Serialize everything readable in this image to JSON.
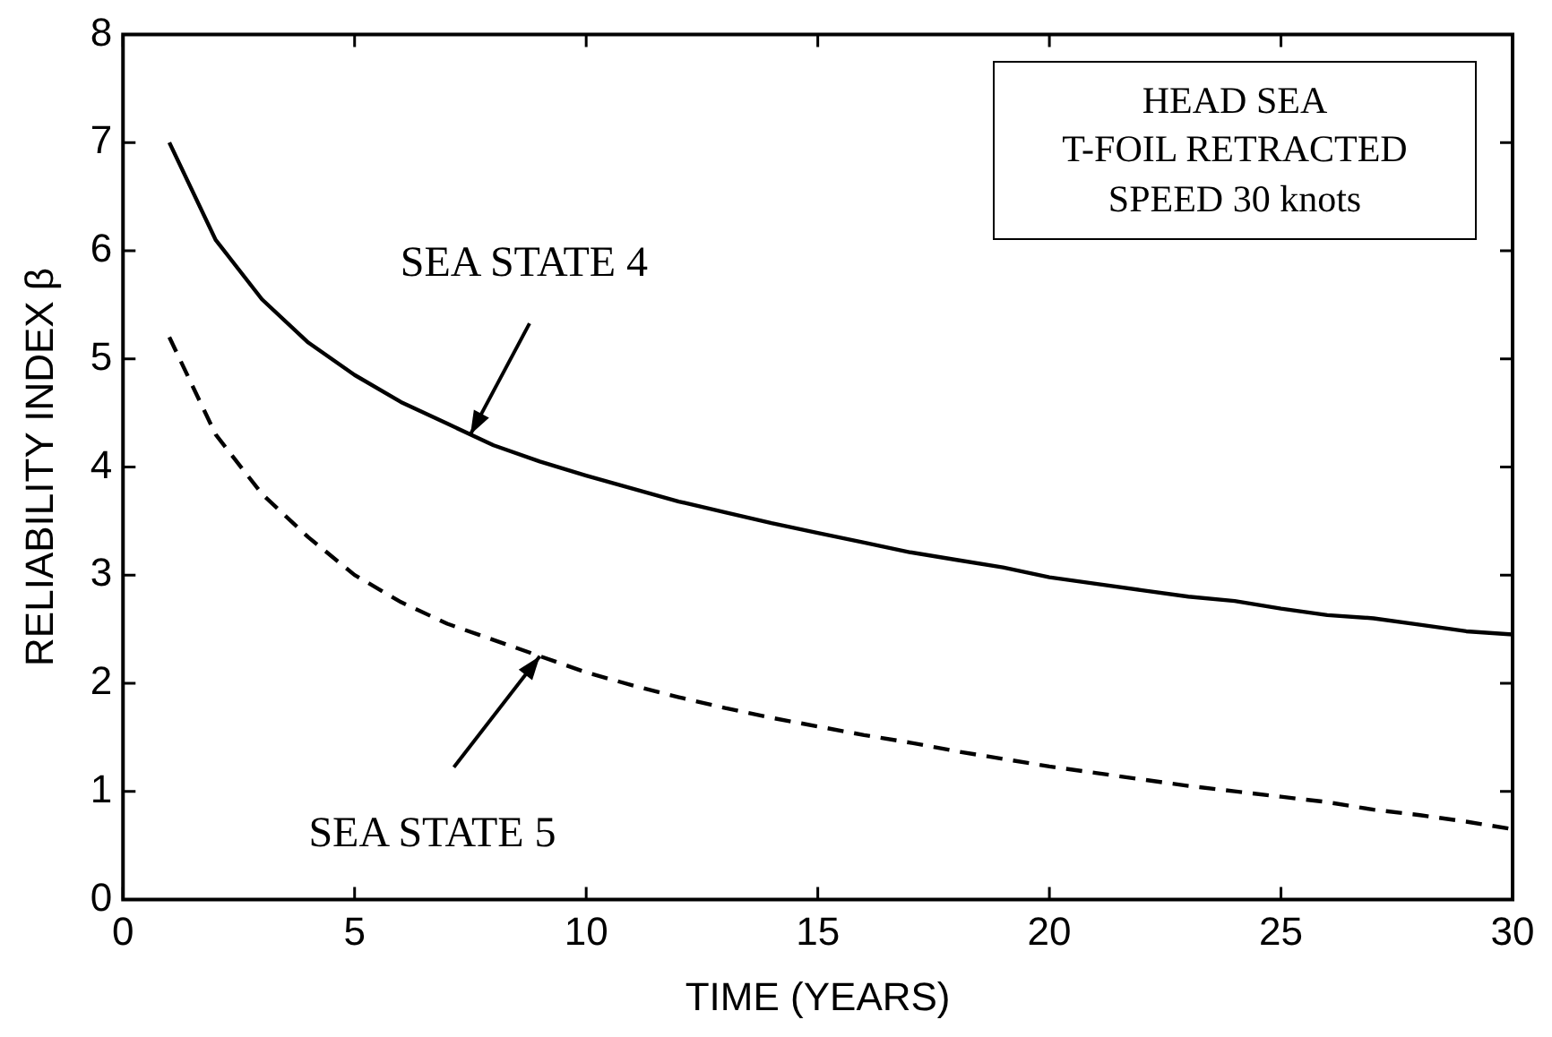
{
  "chart_data": {
    "type": "line",
    "xlabel": "TIME (YEARS)",
    "ylabel": "RELIABILITY INDEX β",
    "x": [
      1,
      2,
      3,
      4,
      5,
      6,
      7,
      8,
      9,
      10,
      11,
      12,
      13,
      14,
      15,
      16,
      17,
      18,
      19,
      20,
      21,
      22,
      23,
      24,
      25,
      26,
      27,
      28,
      29,
      30
    ],
    "series": [
      {
        "color": "#000000",
        "line_style": "solid",
        "values": [
          7.0,
          6.1,
          5.55,
          5.15,
          4.85,
          4.6,
          4.4,
          4.2,
          4.05,
          3.92,
          3.8,
          3.68,
          3.58,
          3.48,
          3.39,
          3.3,
          3.21,
          3.14,
          3.07,
          2.98,
          2.92,
          2.86,
          2.8,
          2.76,
          2.69,
          2.63,
          2.6,
          2.54,
          2.48,
          2.45
        ]
      },
      {
        "color": "#000000",
        "line_style": "dashed",
        "values": [
          5.2,
          4.3,
          3.75,
          3.35,
          3.0,
          2.75,
          2.55,
          2.4,
          2.25,
          2.1,
          1.98,
          1.87,
          1.77,
          1.68,
          1.6,
          1.52,
          1.45,
          1.37,
          1.3,
          1.23,
          1.17,
          1.11,
          1.05,
          1.0,
          0.95,
          0.9,
          0.83,
          0.78,
          0.72,
          0.65
        ]
      }
    ],
    "xlim": [
      0,
      30
    ],
    "xticks": [
      0,
      5,
      10,
      15,
      20,
      25,
      30
    ],
    "ylim": [
      0,
      8
    ],
    "yticks": [
      0,
      1,
      2,
      3,
      4,
      5,
      6,
      7,
      8
    ],
    "grid": false,
    "legend": false,
    "marker": "none",
    "annotations": [
      {
        "text": "SEA STATE 4",
        "x": 7.5,
        "y": 4.3
      },
      {
        "text": "SEA STATE 5",
        "x": 9,
        "y": 2.25
      },
      "HEAD SEA\nT-FOIL RETRACTED\nSPEED 30 knots"
    ]
  }
}
